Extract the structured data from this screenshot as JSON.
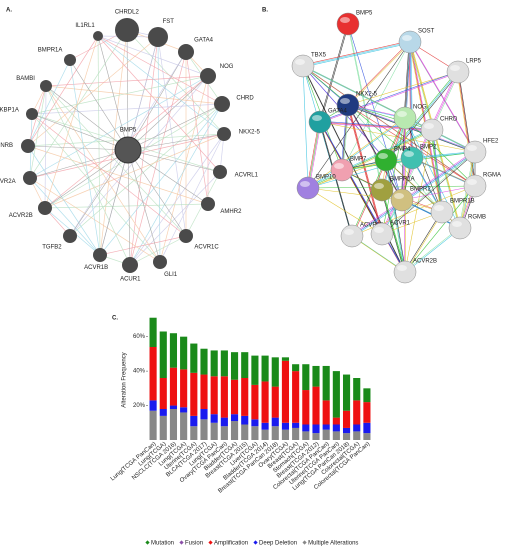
{
  "panels": {
    "a": {
      "label": "A.",
      "center": "BMP5",
      "nodes": [
        "CHRDL2",
        "FST",
        "GATA4",
        "NOG",
        "CHRD",
        "NKX2-5",
        "ACVRL1",
        "AMHR2",
        "ACVR1C",
        "GLI1",
        "ACUR1",
        "ACVR1B",
        "TGFB2",
        "ACVR2B",
        "ACVR2A",
        "EDNRB",
        "FKBP1A",
        "BAMBI",
        "BMPR1A",
        "IL1RL1"
      ]
    },
    "b": {
      "label": "B.",
      "nodes": [
        "BMP5",
        "SOST",
        "LRP5",
        "TBX5",
        "NKX2-5",
        "GATA4",
        "NOG",
        "CHRD",
        "BMP2",
        "BMP4",
        "BMP7",
        "BMP10",
        "HFE2",
        "RGMA",
        "BMPR1A",
        "BMPR2",
        "BMPR1B",
        "RGMB",
        "ACVR2A",
        "ACVR1",
        "ACVR2B"
      ]
    }
  },
  "chart_data": {
    "type": "stacked_bar",
    "panel_label": "C.",
    "y_label": "Alteration Frequency",
    "categories": [
      "Lung(TCGA PanCan)",
      "Lung(TCGA)",
      "NSCLC(TCGA 2016)",
      "Lung(TCGA)",
      "Uterine(TCGA)",
      "BLCA(TCGA 2017)",
      "Lung(TCGA)",
      "Ovary(TCGA PanCan)",
      "Bladder(TCGA)",
      "Breast(TCGA 2015)",
      "Liver(TCGA)",
      "Bladder(TCGA 2014)",
      "Breast(TCGA PanCan 2018)",
      "Ovary(TCGA)",
      "Breast(TCGA)",
      "Stomach(TCGA)",
      "Breast(TCGA 2012)",
      "Colorectal(TCGA PanCan)",
      "Uterine(TCGA PanCan)",
      "Lung(TCGA PanCan 2018)",
      "Colorectal(TCGA)",
      "Colorectal(TCGA PanCan)"
    ],
    "series": [
      {
        "name": "Mutation",
        "color": "#1a8a1a",
        "values": [
          17,
          27,
          20,
          19,
          17,
          15,
          15,
          15,
          16,
          15,
          17,
          15,
          17,
          2,
          4,
          15,
          12,
          20,
          27,
          21,
          13,
          8
        ]
      },
      {
        "name": "Fusion",
        "color": "#8a4fa8",
        "values": [
          0,
          0,
          0,
          0,
          0,
          0,
          0,
          0,
          0,
          0,
          0,
          0,
          0,
          0,
          0,
          0,
          0,
          0,
          0,
          0,
          0,
          0
        ]
      },
      {
        "name": "Amplification",
        "color": "#ee1111",
        "values": [
          31,
          18,
          22,
          22,
          25,
          20,
          22,
          24,
          20,
          22,
          20,
          24,
          18,
          36,
          30,
          20,
          22,
          14,
          4,
          10,
          14,
          12
        ]
      },
      {
        "name": "Deep Deletion",
        "color": "#1a1aee",
        "values": [
          6,
          4,
          2,
          3,
          6,
          6,
          5,
          5,
          4,
          5,
          4,
          4,
          5,
          4,
          3,
          4,
          5,
          3,
          4,
          3,
          4,
          6
        ]
      },
      {
        "name": "Multiple Alterations",
        "color": "#888888",
        "values": [
          17,
          14,
          18,
          16,
          8,
          12,
          10,
          8,
          11,
          9,
          8,
          6,
          8,
          6,
          7,
          5,
          4,
          6,
          5,
          4,
          5,
          4
        ]
      }
    ],
    "ylim": [
      0,
      72
    ],
    "yticks": [
      {
        "value": 20,
        "label": "20%"
      },
      {
        "value": 40,
        "label": "40%"
      },
      {
        "value": 60,
        "label": "60%"
      }
    ]
  }
}
